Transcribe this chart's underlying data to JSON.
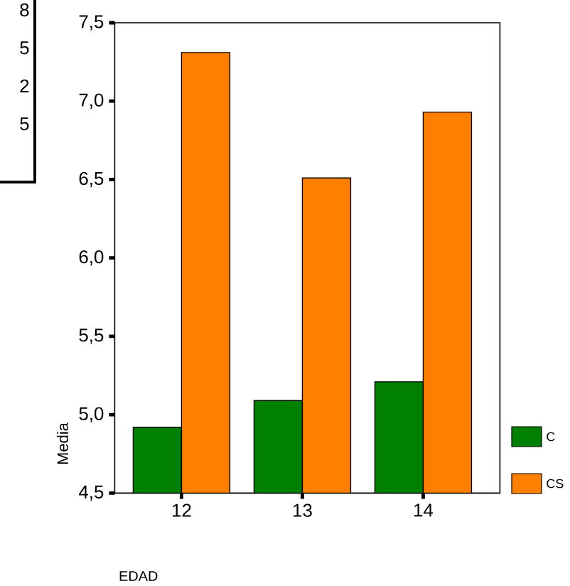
{
  "chart_data": {
    "type": "bar",
    "categories": [
      "12",
      "13",
      "14"
    ],
    "series": [
      {
        "name": "C",
        "color": "#008000",
        "values": [
          4.92,
          5.09,
          5.21
        ]
      },
      {
        "name": "CS",
        "color": "#ff8000",
        "values": [
          7.31,
          6.51,
          6.93
        ]
      }
    ],
    "xlabel": "EDAD",
    "ylabel": "Media",
    "ylim": [
      4.5,
      7.5
    ],
    "yticks": [
      {
        "value": 4.5,
        "label": "4,5"
      },
      {
        "value": 5.0,
        "label": "5,0"
      },
      {
        "value": 5.5,
        "label": "5,5"
      },
      {
        "value": 6.0,
        "label": "6,0"
      },
      {
        "value": 6.5,
        "label": "6,5"
      },
      {
        "value": 7.0,
        "label": "7,0"
      },
      {
        "value": 7.5,
        "label": "7,5"
      }
    ],
    "legend": "right",
    "grid": false,
    "annotations": [
      "8",
      "5",
      "2",
      "5"
    ]
  }
}
